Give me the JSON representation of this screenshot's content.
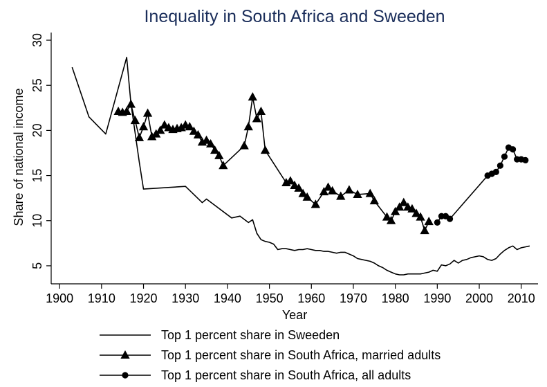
{
  "chart_data": {
    "type": "line",
    "title": "Inequality in South Africa and Sweeden",
    "xlabel": "Year",
    "ylabel": "Share of national income",
    "xlim": [
      1898,
      2014
    ],
    "ylim": [
      3,
      31
    ],
    "xticks": [
      1900,
      1910,
      1920,
      1930,
      1940,
      1950,
      1960,
      1970,
      1980,
      1990,
      2000,
      2010
    ],
    "yticks": [
      5,
      10,
      15,
      20,
      25,
      30
    ],
    "grid": false,
    "legend_position": "bottom",
    "series": [
      {
        "name": "Top 1 percent share in Sweeden",
        "marker": "none",
        "points": [
          [
            1903,
            27.0
          ],
          [
            1907,
            21.5
          ],
          [
            1911,
            19.6
          ],
          [
            1916,
            28.1
          ],
          [
            1917,
            23.0
          ],
          [
            1919,
            16.5
          ],
          [
            1920,
            13.5
          ],
          [
            1930,
            13.8
          ],
          [
            1934,
            12.0
          ],
          [
            1935,
            12.4
          ],
          [
            1941,
            10.3
          ],
          [
            1943,
            10.5
          ],
          [
            1945,
            9.8
          ],
          [
            1946,
            10.1
          ],
          [
            1947,
            8.6
          ],
          [
            1948,
            7.9
          ],
          [
            1949,
            7.7
          ],
          [
            1950,
            7.6
          ],
          [
            1951,
            7.4
          ],
          [
            1952,
            6.8
          ],
          [
            1953,
            6.9
          ],
          [
            1954,
            6.9
          ],
          [
            1955,
            6.8
          ],
          [
            1956,
            6.7
          ],
          [
            1957,
            6.8
          ],
          [
            1958,
            6.8
          ],
          [
            1959,
            6.9
          ],
          [
            1960,
            6.8
          ],
          [
            1961,
            6.7
          ],
          [
            1962,
            6.7
          ],
          [
            1963,
            6.6
          ],
          [
            1964,
            6.6
          ],
          [
            1965,
            6.5
          ],
          [
            1966,
            6.4
          ],
          [
            1967,
            6.5
          ],
          [
            1968,
            6.5
          ],
          [
            1969,
            6.3
          ],
          [
            1970,
            6.1
          ],
          [
            1971,
            5.8
          ],
          [
            1972,
            5.7
          ],
          [
            1973,
            5.6
          ],
          [
            1974,
            5.5
          ],
          [
            1975,
            5.3
          ],
          [
            1976,
            5.0
          ],
          [
            1977,
            4.8
          ],
          [
            1978,
            4.5
          ],
          [
            1979,
            4.3
          ],
          [
            1980,
            4.1
          ],
          [
            1981,
            4.0
          ],
          [
            1982,
            4.0
          ],
          [
            1983,
            4.1
          ],
          [
            1984,
            4.1
          ],
          [
            1985,
            4.1
          ],
          [
            1986,
            4.1
          ],
          [
            1987,
            4.2
          ],
          [
            1988,
            4.3
          ],
          [
            1989,
            4.5
          ],
          [
            1990,
            4.4
          ],
          [
            1991,
            5.1
          ],
          [
            1992,
            5.0
          ],
          [
            1993,
            5.2
          ],
          [
            1994,
            5.6
          ],
          [
            1995,
            5.3
          ],
          [
            1996,
            5.6
          ],
          [
            1997,
            5.7
          ],
          [
            1998,
            5.9
          ],
          [
            1999,
            6.0
          ],
          [
            2000,
            6.1
          ],
          [
            2001,
            6.0
          ],
          [
            2002,
            5.7
          ],
          [
            2003,
            5.6
          ],
          [
            2004,
            5.8
          ],
          [
            2005,
            6.3
          ],
          [
            2006,
            6.7
          ],
          [
            2007,
            7.0
          ],
          [
            2008,
            7.2
          ],
          [
            2009,
            6.8
          ],
          [
            2010,
            7.0
          ],
          [
            2011,
            7.1
          ],
          [
            2012,
            7.2
          ]
        ]
      },
      {
        "name": "Top 1 percent share in South Africa, married adults",
        "marker": "triangle",
        "points": [
          [
            1914,
            22.1
          ],
          [
            1915,
            22.0
          ],
          [
            1916,
            22.1
          ],
          [
            1917,
            22.9
          ],
          [
            1918,
            21.1
          ],
          [
            1919,
            19.2
          ],
          [
            1920,
            20.4
          ],
          [
            1921,
            21.9
          ],
          [
            1922,
            19.3
          ],
          [
            1923,
            19.6
          ],
          [
            1924,
            20.0
          ],
          [
            1925,
            20.6
          ],
          [
            1926,
            20.3
          ],
          [
            1927,
            20.1
          ],
          [
            1928,
            20.2
          ],
          [
            1929,
            20.3
          ],
          [
            1930,
            20.6
          ],
          [
            1931,
            20.4
          ],
          [
            1932,
            19.9
          ],
          [
            1933,
            19.5
          ],
          [
            1934,
            18.7
          ],
          [
            1935,
            18.9
          ],
          [
            1936,
            18.5
          ],
          [
            1937,
            17.8
          ],
          [
            1938,
            17.2
          ],
          [
            1939,
            16.1
          ],
          [
            1944,
            18.3
          ],
          [
            1945,
            20.4
          ],
          [
            1946,
            23.7
          ],
          [
            1947,
            21.3
          ],
          [
            1948,
            22.1
          ],
          [
            1949,
            17.8
          ],
          [
            1954,
            14.2
          ],
          [
            1955,
            14.4
          ],
          [
            1956,
            13.9
          ],
          [
            1957,
            13.6
          ],
          [
            1958,
            13.0
          ],
          [
            1959,
            12.6
          ],
          [
            1961,
            11.8
          ],
          [
            1963,
            13.2
          ],
          [
            1964,
            13.7
          ],
          [
            1965,
            13.3
          ],
          [
            1967,
            12.7
          ],
          [
            1969,
            13.4
          ],
          [
            1971,
            12.9
          ],
          [
            1974,
            13.0
          ],
          [
            1975,
            12.2
          ],
          [
            1978,
            10.4
          ],
          [
            1979,
            10.0
          ],
          [
            1980,
            11.0
          ],
          [
            1981,
            11.5
          ],
          [
            1982,
            12.0
          ],
          [
            1983,
            11.5
          ],
          [
            1984,
            11.3
          ],
          [
            1985,
            10.8
          ],
          [
            1986,
            10.4
          ],
          [
            1987,
            8.9
          ],
          [
            1988,
            9.9
          ]
        ]
      },
      {
        "name": "Top 1 percent share in South Africa, all adults",
        "marker": "circle",
        "points": [
          [
            1990,
            9.8
          ],
          [
            1991,
            10.5
          ],
          [
            1992,
            10.5
          ],
          [
            1993,
            10.2
          ],
          [
            2002,
            15.0
          ],
          [
            2003,
            15.2
          ],
          [
            2004,
            15.4
          ],
          [
            2005,
            16.1
          ],
          [
            2006,
            17.1
          ],
          [
            2007,
            18.1
          ],
          [
            2008,
            17.9
          ],
          [
            2009,
            16.8
          ],
          [
            2010,
            16.8
          ],
          [
            2011,
            16.7
          ]
        ]
      }
    ]
  }
}
